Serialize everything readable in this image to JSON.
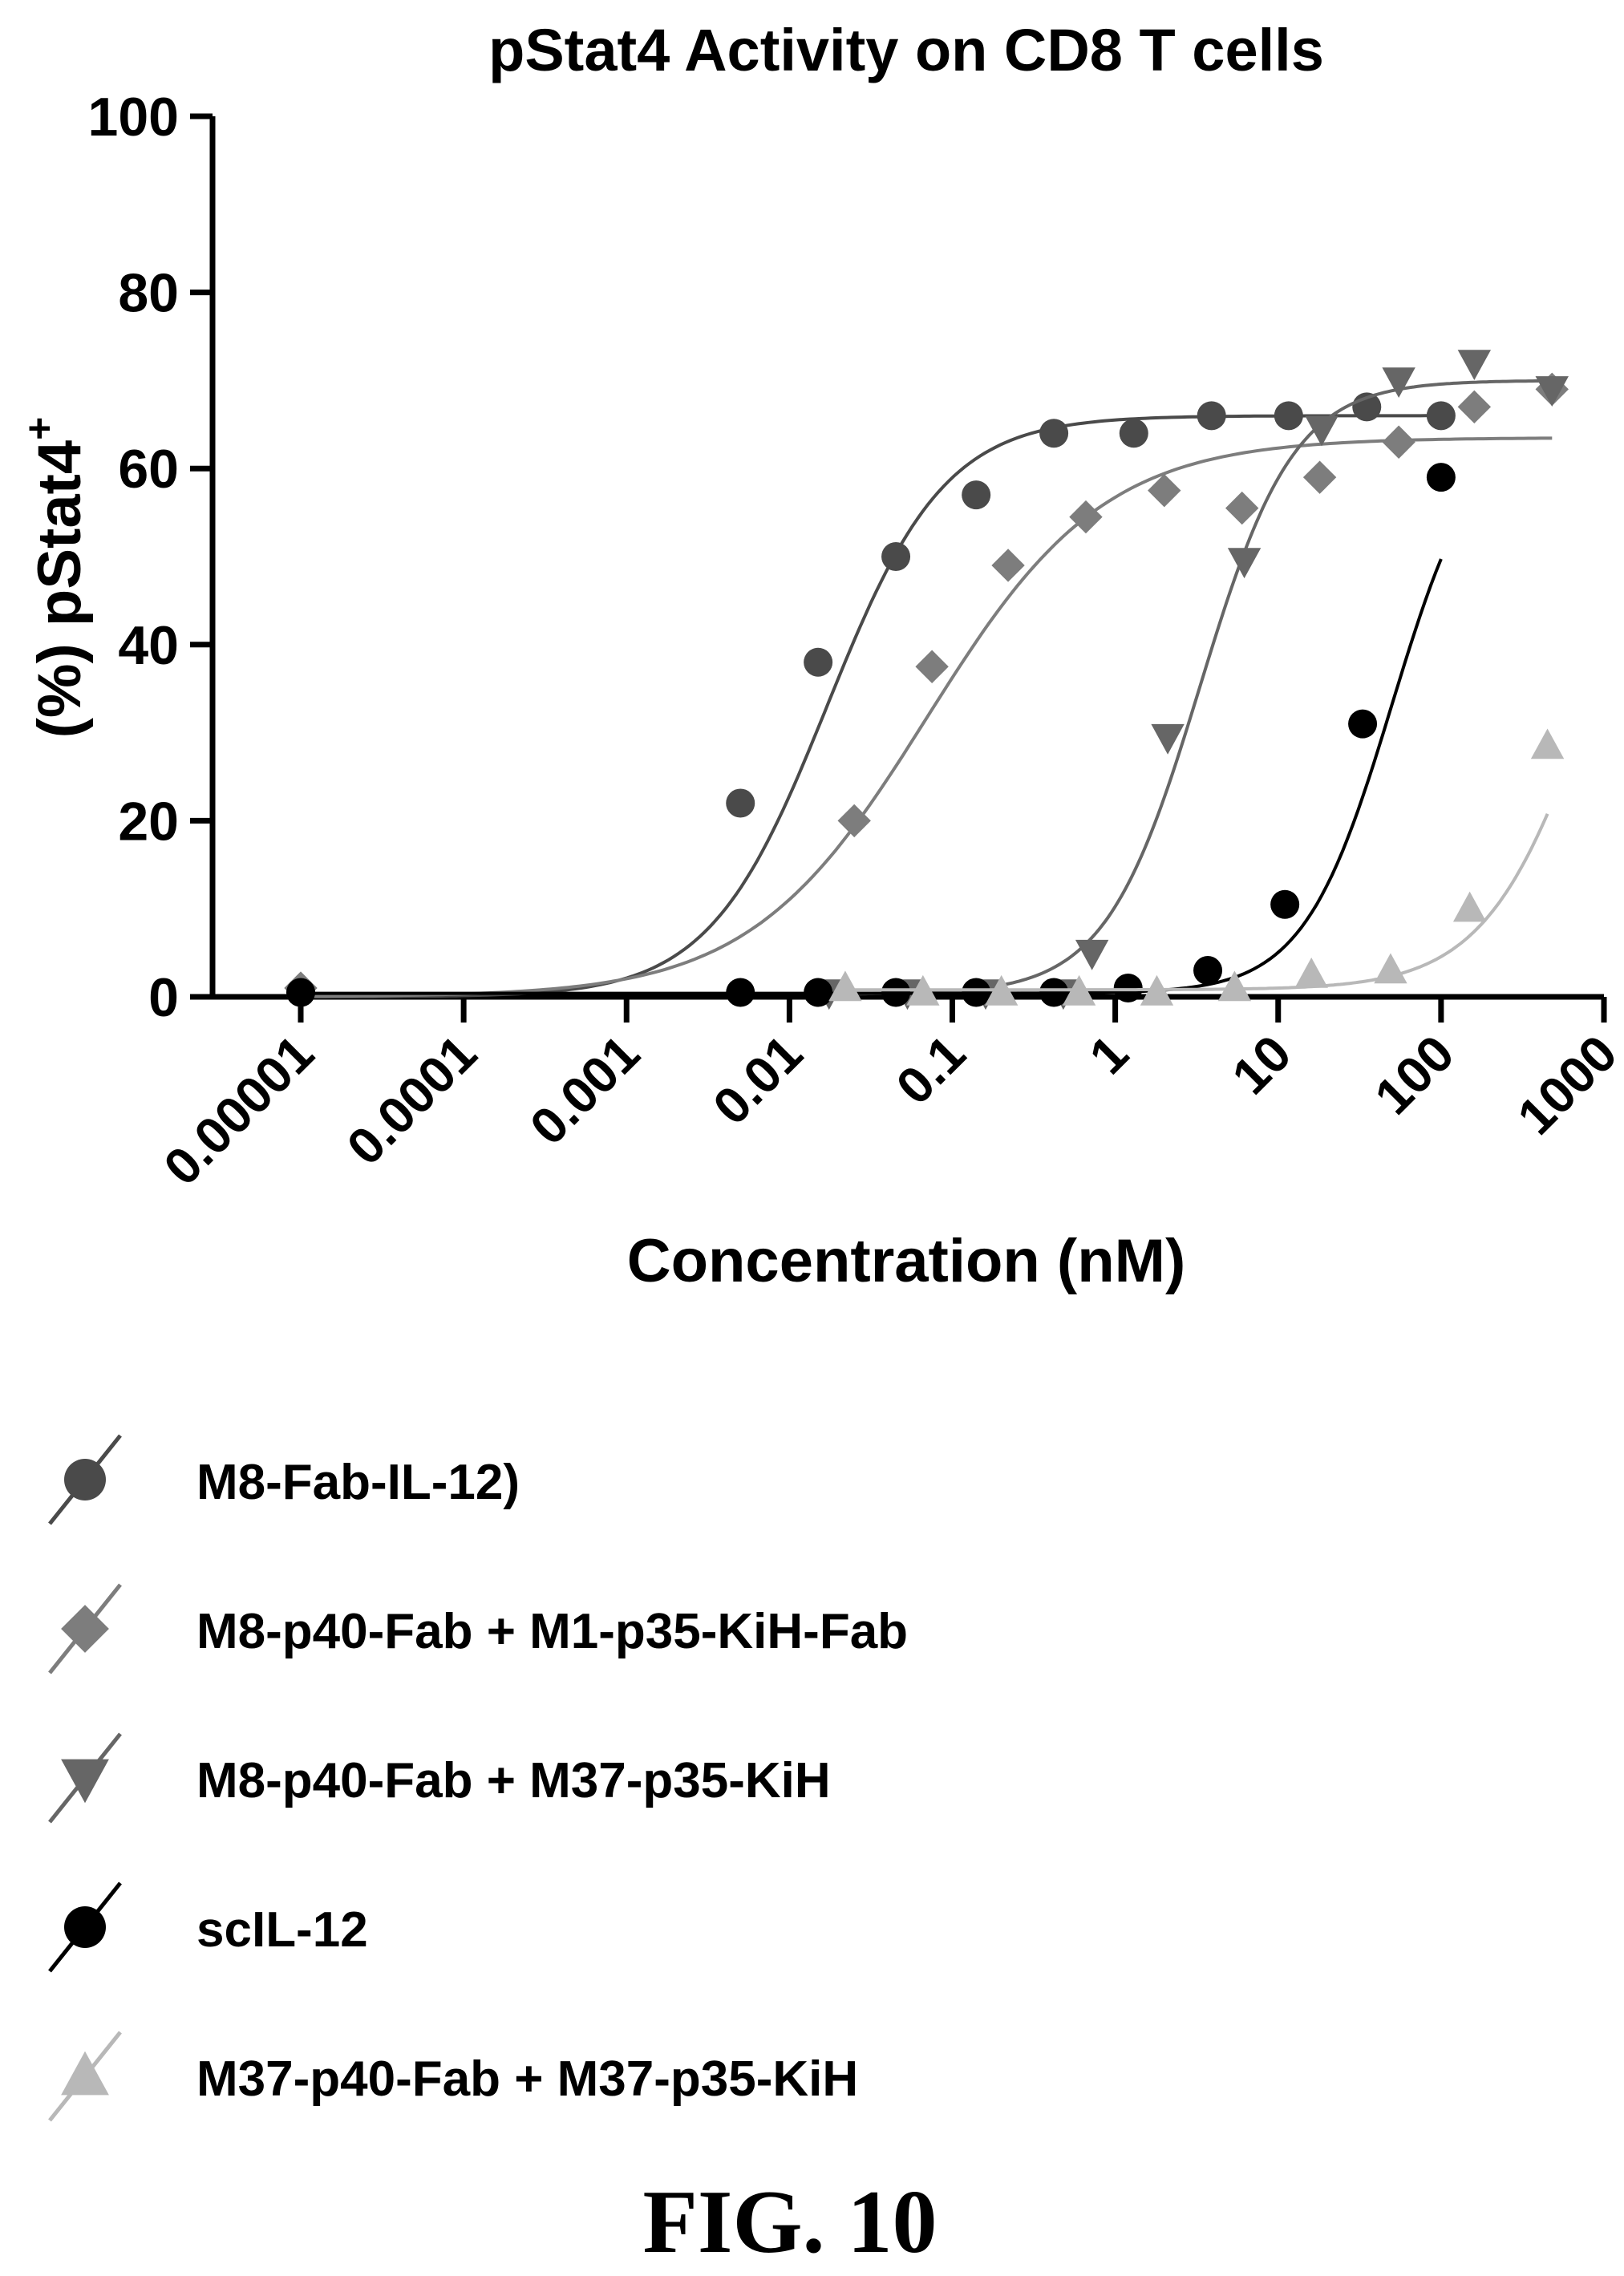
{
  "figure_label": "FIG. 10",
  "chart_data": {
    "type": "scatter",
    "title": "pStat4  Activity on CD8 T cells",
    "xlabel": "Concentration (nM)",
    "ylabel_main": "(%) pStat4",
    "ylabel_sup": "+",
    "x_scale": "log",
    "xlim": [
      1e-05,
      1000
    ],
    "ylim": [
      0,
      100
    ],
    "x_ticks": [
      1e-05,
      0.0001,
      0.001,
      0.01,
      0.1,
      1,
      10,
      100,
      1000
    ],
    "x_tick_labels": [
      "0.00001",
      "0.0001",
      "0.001",
      "0.01",
      "0.1",
      "1",
      "10",
      "100",
      "1000"
    ],
    "y_ticks": [
      0,
      20,
      40,
      60,
      80,
      100
    ],
    "y_tick_labels": [
      "0",
      "20",
      "40",
      "60",
      "80",
      "100"
    ],
    "grid": false,
    "legend_position": "below",
    "series": [
      {
        "name": "M8-Fab-IL-12)",
        "marker": "circle",
        "color": "#4a4a4a",
        "x": [
          1e-05,
          0.005,
          0.015,
          0.045,
          0.14,
          0.42,
          1.3,
          3.9,
          11.6,
          35,
          100
        ],
        "y": [
          0.5,
          22,
          38,
          50,
          57,
          64,
          64,
          66,
          66,
          67,
          66
        ],
        "fit": {
          "bottom": 0,
          "top": 66,
          "ec50": 0.017,
          "hill": 1.2
        }
      },
      {
        "name": "M8-p40-Fab + M1-p35-KiH-Fab",
        "marker": "diamond",
        "color": "#7d7d7d",
        "x": [
          1e-05,
          0.025,
          0.075,
          0.22,
          0.66,
          2,
          6,
          18,
          55,
          160,
          480
        ],
        "y": [
          1,
          20,
          37.5,
          49,
          54.5,
          57.5,
          55.5,
          59,
          63,
          67,
          69
        ],
        "fit": {
          "bottom": 0,
          "top": 63.5,
          "ec50": 0.07,
          "hill": 0.8
        }
      },
      {
        "name": "M8-p40-Fab + M37-p35-KiH",
        "marker": "triangle-down",
        "color": "#666666",
        "x": [
          0.0175,
          0.053,
          0.16,
          0.48,
          0.72,
          2.1,
          6.2,
          18.5,
          55,
          160,
          480
        ],
        "y": [
          0.5,
          0.5,
          0.5,
          0.5,
          5,
          29.5,
          49.5,
          64.5,
          70,
          72,
          69
        ],
        "fit": {
          "bottom": 0.3,
          "top": 70,
          "ec50": 3.3,
          "hill": 1.5
        }
      },
      {
        "name": "scIL-12",
        "marker": "circle",
        "color": "#000000",
        "x": [
          1e-05,
          0.005,
          0.015,
          0.045,
          0.14,
          0.42,
          1.2,
          3.7,
          11,
          33,
          100
        ],
        "y": [
          0.5,
          0.5,
          0.5,
          0.5,
          0.5,
          0.5,
          1,
          3,
          10.5,
          31,
          59
        ],
        "fit": {
          "bottom": 0.4,
          "top": 66,
          "ec50": 50,
          "hill": 1.6
        }
      },
      {
        "name": "M37-p40-Fab + M37-p35-KiH",
        "marker": "triangle-up",
        "color": "#b8b8b8",
        "x": [
          0.022,
          0.066,
          0.2,
          0.6,
          1.8,
          5.4,
          16,
          49,
          150,
          450
        ],
        "y": [
          1,
          0.5,
          0.5,
          0.5,
          0.5,
          1,
          2.5,
          3,
          10,
          28.5
        ],
        "fit": {
          "bottom": 0.8,
          "top": 70,
          "ec50": 900,
          "hill": 1.3
        }
      }
    ]
  }
}
